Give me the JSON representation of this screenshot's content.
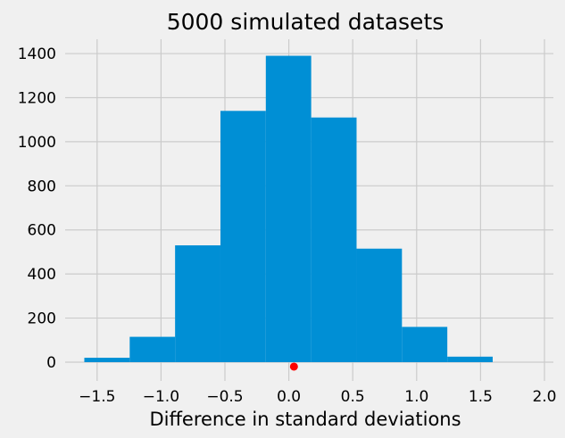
{
  "chart_data": {
    "type": "bar",
    "title": "5000 simulated datasets",
    "xlabel": "Difference in standard deviations",
    "ylabel": "",
    "xlim": [
      -1.75,
      2.07
    ],
    "ylim": [
      -85,
      1465
    ],
    "xticks": [
      -1.5,
      -1.0,
      -0.5,
      0.0,
      0.5,
      1.0,
      1.5,
      2.0
    ],
    "xtick_labels": [
      "−1.5",
      "−1.0",
      "−0.5",
      "0.0",
      "0.5",
      "1.0",
      "1.5",
      "2.0"
    ],
    "yticks": [
      0,
      200,
      400,
      600,
      800,
      1000,
      1200,
      1400
    ],
    "ytick_labels": [
      "0",
      "200",
      "400",
      "600",
      "800",
      "1000",
      "1200",
      "1400"
    ],
    "grid": true,
    "bin_edges": [
      -1.6,
      -1.245,
      -0.89,
      -0.535,
      -0.18,
      0.175,
      0.53,
      0.885,
      1.24,
      1.595
    ],
    "values": [
      20,
      115,
      530,
      1140,
      1390,
      1110,
      515,
      160,
      25
    ],
    "bar_color": "#008fd5",
    "marker": {
      "x": 0.04,
      "y": -20,
      "color": "#ff0000"
    }
  }
}
